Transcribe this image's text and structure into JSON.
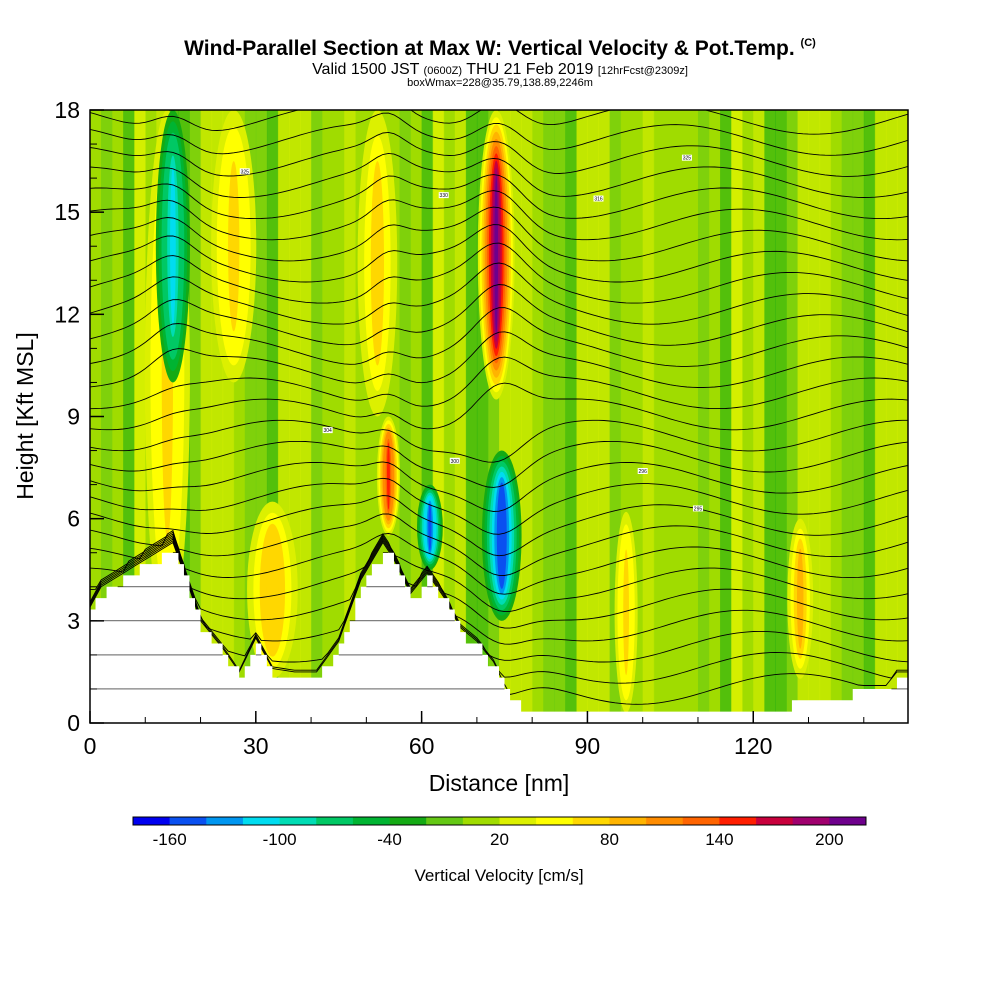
{
  "title": {
    "main": "Wind-Parallel Section at Max W: Vertical Velocity & Pot.Temp.",
    "copyright": "(C)",
    "valid_prefix": "Valid 1500 JST",
    "valid_z": "(0600Z)",
    "valid_date": "THU 21 Feb 2019",
    "forecast": "[12hrFcst@2309z]",
    "boxinfo": "boxWmax=228@35.79,138.89,2246m"
  },
  "chart_data": {
    "type": "heatmap",
    "xlabel": "Distance [nm]",
    "ylabel": "Height [Kft MSL]",
    "xlim": [
      0,
      148
    ],
    "ylim": [
      0,
      18
    ],
    "x_ticks": [
      0,
      30,
      60,
      90,
      120
    ],
    "y_ticks": [
      0,
      3,
      6,
      9,
      12,
      15,
      18
    ],
    "colorbar": {
      "label": "Vertical Velocity [cm/s]",
      "tick_labels": [
        "-160",
        "-100",
        "-40",
        "20",
        "80",
        "140",
        "200"
      ],
      "colors": [
        "#0000f0",
        "#0a50f0",
        "#0096f0",
        "#00dcf0",
        "#00dcb4",
        "#00c864",
        "#00b432",
        "#14aa14",
        "#64c814",
        "#a0dc00",
        "#dcf000",
        "#ffff00",
        "#ffd700",
        "#ffb400",
        "#ff8c00",
        "#ff6400",
        "#ff1e00",
        "#c8003c",
        "#a0006e",
        "#6e008c"
      ]
    },
    "terrain_profile": {
      "x": [
        0,
        2,
        6,
        12,
        15,
        17,
        20,
        24,
        27,
        30,
        33,
        37,
        41,
        45,
        49,
        53,
        55,
        58,
        61,
        64,
        67,
        70,
        73,
        76,
        80,
        90,
        100,
        110,
        120,
        130,
        140,
        144,
        146,
        148
      ],
      "height": [
        3.2,
        3.8,
        4.2,
        4.8,
        5.1,
        4.2,
        2.8,
        2.0,
        1.3,
        2.3,
        1.4,
        1.3,
        1.3,
        2.2,
        4.0,
        5.1,
        4.6,
        3.6,
        4.2,
        3.5,
        2.6,
        2.2,
        1.6,
        0.6,
        0.3,
        0.3,
        0.3,
        0.3,
        0.3,
        0.6,
        0.9,
        0.9,
        1.3,
        1.3
      ]
    },
    "features": [
      {
        "x_center": 14,
        "x_width": 6,
        "height_bottom": 2.5,
        "height_top": 18,
        "value": 70
      },
      {
        "x_center": 15,
        "x_width": 4,
        "height_bottom": 10,
        "height_top": 18,
        "value": -110
      },
      {
        "x_center": 26,
        "x_width": 6,
        "height_bottom": 10,
        "height_top": 18,
        "value": 70
      },
      {
        "x_center": 33,
        "x_width": 7,
        "height_bottom": 1.3,
        "height_top": 6.5,
        "value": 75
      },
      {
        "x_center": 52,
        "x_width": 5,
        "height_bottom": 9,
        "height_top": 18,
        "value": 60
      },
      {
        "x_center": 54,
        "x_width": 2,
        "height_bottom": 5.5,
        "height_top": 9,
        "value": 150
      },
      {
        "x_center": 61.5,
        "x_width": 2.5,
        "height_bottom": 4.5,
        "height_top": 7,
        "value": -150
      },
      {
        "x_center": 73.5,
        "x_width": 4.5,
        "height_bottom": 9.5,
        "height_top": 18,
        "value": 200
      },
      {
        "x_center": 74.5,
        "x_width": 5,
        "height_bottom": 3,
        "height_top": 8,
        "value": -160
      },
      {
        "x_center": 97,
        "x_width": 2,
        "height_bottom": 0.3,
        "height_top": 6.2,
        "value": 70
      },
      {
        "x_center": 128.5,
        "x_width": 2.5,
        "height_bottom": 1.3,
        "height_top": 6,
        "value": 80
      }
    ],
    "isentropes": {
      "count": 28,
      "line_color": "#000000",
      "label_sample": [
        {
          "x": 28,
          "y": 16.2,
          "text": "325"
        },
        {
          "x": 64,
          "y": 15.5,
          "text": "330"
        },
        {
          "x": 92,
          "y": 15.4,
          "text": "316"
        },
        {
          "x": 108,
          "y": 16.6,
          "text": "325"
        },
        {
          "x": 43,
          "y": 8.6,
          "text": "304"
        },
        {
          "x": 66,
          "y": 7.7,
          "text": "300"
        },
        {
          "x": 110,
          "y": 6.3,
          "text": "295"
        },
        {
          "x": 100,
          "y": 7.4,
          "text": "296"
        }
      ]
    }
  }
}
